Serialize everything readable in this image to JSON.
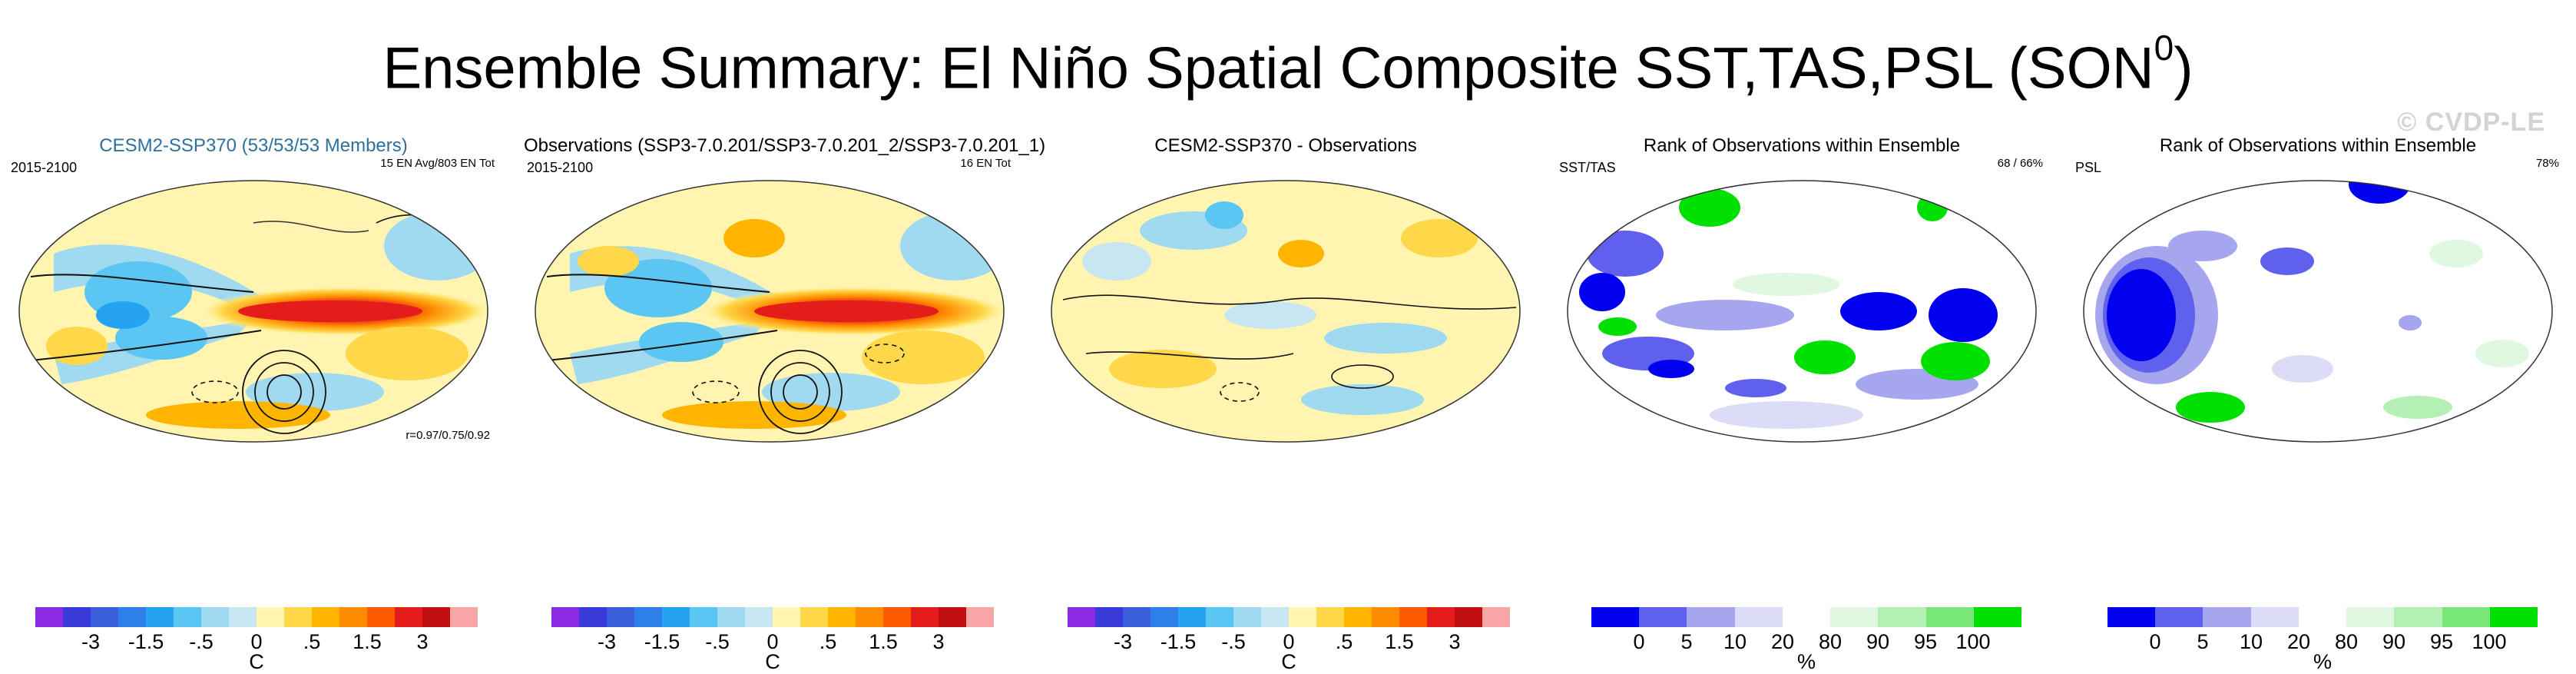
{
  "title": {
    "main": "Ensemble Summary: El Niño Spatial Composite SST,TAS,PSL (SON",
    "superscript": "0",
    "close": ")"
  },
  "watermark": "© CVDP-LE",
  "panels": [
    {
      "title": "CESM2-SSP370 (53/53/53 Members)",
      "top_left": "2015-2100",
      "top_right": "15 EN Avg/803 EN Tot",
      "stat": "r=0.97/0.75/0.92",
      "ticks": [
        "-3",
        "-1.5",
        "-.5",
        "0",
        ".5",
        "1.5",
        "3"
      ],
      "unit": "C"
    },
    {
      "title": "Observations (SSP3-7.0.201/SSP3-7.0.201_2/SSP3-7.0.201_1)",
      "top_left": "2015-2100",
      "top_right": "16 EN Tot",
      "ticks": [
        "-3",
        "-1.5",
        "-.5",
        "0",
        ".5",
        "1.5",
        "3"
      ],
      "unit": "C"
    },
    {
      "title": "CESM2-SSP370 - Observations",
      "ticks": [
        "-3",
        "-1.5",
        "-.5",
        "0",
        ".5",
        "1.5",
        "3"
      ],
      "unit": "C"
    },
    {
      "title": "Rank of Observations within Ensemble",
      "top_left": "SST/TAS",
      "top_right": "68 /  66%",
      "ticks": [
        "0",
        "5",
        "10",
        "20",
        "80",
        "90",
        "95",
        "100"
      ],
      "unit": "%"
    },
    {
      "title": "Rank of Observations within Ensemble",
      "top_left": "PSL",
      "top_right": "78%",
      "ticks": [
        "0",
        "5",
        "10",
        "20",
        "80",
        "90",
        "95",
        "100"
      ],
      "unit": "%"
    }
  ],
  "chart_data": {
    "type": "heatmap",
    "title": "Ensemble Summary: El Niño Spatial Composite SST,TAS,PSL (SON0)",
    "colorbars": [
      {
        "name": "anomaly",
        "unit": "C",
        "levels": [
          -4,
          -3,
          -2,
          -1.5,
          -1,
          -0.5,
          -0.25,
          0,
          0.25,
          0.5,
          1,
          1.5,
          2,
          3,
          4
        ],
        "colors": [
          "#8a2be2",
          "#3a3ad8",
          "#3b5fd9",
          "#2f7fe8",
          "#25a3f0",
          "#5cc6f2",
          "#9fdaf0",
          "#c8e6f2",
          "#fff5b0",
          "#ffd84a",
          "#ffb400",
          "#ff8c00",
          "#ff5a00",
          "#e51c1c",
          "#c21010",
          "#f7a6a6"
        ],
        "tick_labels": [
          "-3",
          "-1.5",
          "-.5",
          "0",
          ".5",
          "1.5",
          "3"
        ]
      },
      {
        "name": "rank",
        "unit": "%",
        "levels": [
          0,
          5,
          10,
          20,
          80,
          90,
          95,
          100
        ],
        "colors": [
          "#0000ee",
          "#6060ee",
          "#a6a6ef",
          "#dcdcf6",
          "#ffffff",
          "#e0f7e0",
          "#b4f0b4",
          "#78e678",
          "#00e000"
        ],
        "tick_labels": [
          "0",
          "5",
          "10",
          "20",
          "80",
          "90",
          "95",
          "100"
        ]
      }
    ],
    "nino34_peak_anomaly_C": 3
  }
}
